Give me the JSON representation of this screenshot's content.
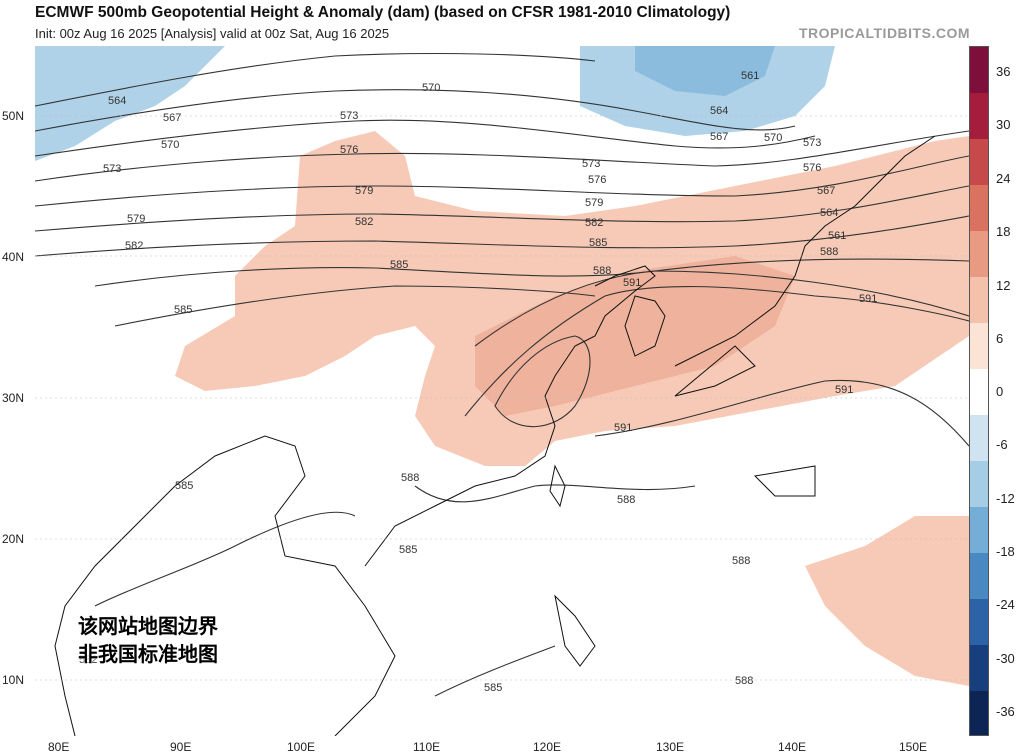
{
  "header": {
    "title": "ECMWF 500mb Geopotential Height & Anomaly (dam) (based on CFSR 1981-2010 Climatology)",
    "subtitle": "Init: 00z Aug 16 2025   [Analysis]   valid at 00z Sat, Aug 16 2025",
    "brand": "TROPICALTIDBITS.COM"
  },
  "colorbar": {
    "labels": [
      "36",
      "30",
      "24",
      "18",
      "12",
      "6",
      "0",
      "-6",
      "-12",
      "-18",
      "-24",
      "-30",
      "-36"
    ],
    "colors": [
      "#7d0f3a",
      "#a51d3c",
      "#c64a4a",
      "#d9735f",
      "#e89a82",
      "#f4c1aa",
      "#fbe3d5",
      "#ffffff",
      "#cfe3f0",
      "#a6cde6",
      "#74add6",
      "#4a88c2",
      "#2c62a6",
      "#173f7d",
      "#0d2554"
    ]
  },
  "axes": {
    "lat_labels": [
      "50N",
      "40N",
      "30N",
      "20N",
      "10N"
    ],
    "lon_labels": [
      "80E",
      "90E",
      "100E",
      "110E",
      "120E",
      "130E",
      "140E",
      "150E"
    ]
  },
  "contours": {
    "labels": [
      "561",
      "564",
      "567",
      "570",
      "573",
      "576",
      "579",
      "582",
      "585",
      "588",
      "591",
      "564",
      "567",
      "570",
      "573",
      "576",
      "579",
      "582",
      "585",
      "588",
      "591",
      "591",
      "588",
      "585",
      "588",
      "582",
      "585",
      "588",
      "585",
      "591",
      "588",
      "585",
      "576",
      "573",
      "579",
      "582",
      "573",
      "570",
      "567",
      "564",
      "561"
    ]
  },
  "watermark": {
    "line1": "该网站地图边界",
    "line2": "非我国标准地图"
  }
}
